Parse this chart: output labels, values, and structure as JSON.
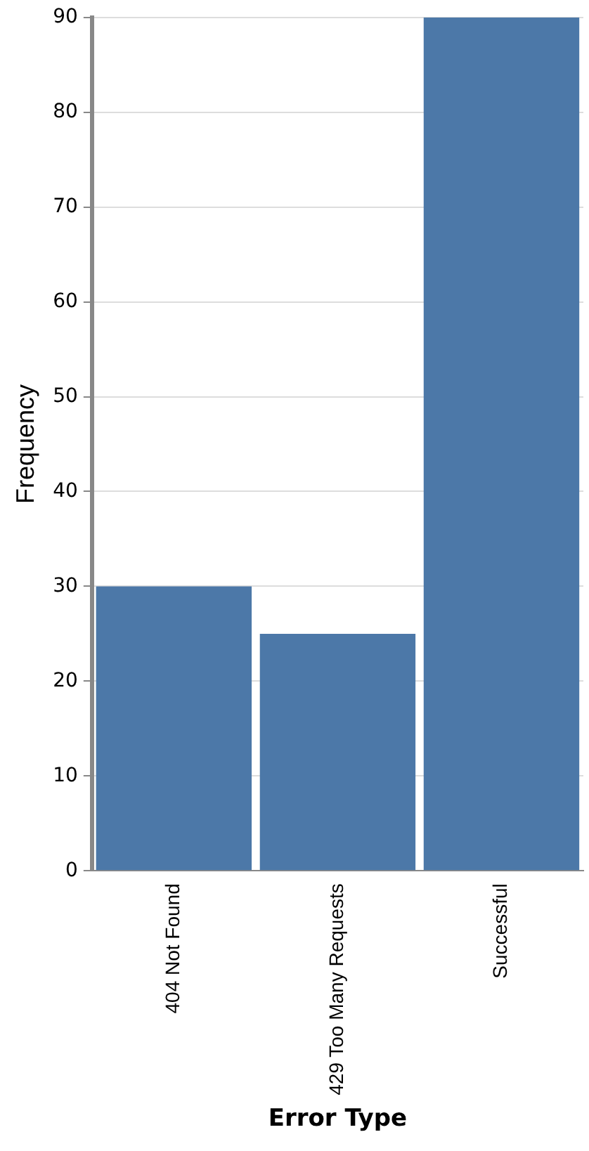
{
  "chart_data": {
    "type": "bar",
    "xlabel": "Error Type",
    "ylabel": "Frequency",
    "categories": [
      "404 Not Found",
      "429 Too Many Requests",
      "Successful"
    ],
    "values": [
      30,
      25,
      90
    ],
    "color": "#4c78a8",
    "ylim": [
      0,
      90
    ],
    "yticks": [
      0,
      10,
      20,
      30,
      40,
      50,
      60,
      70,
      80,
      90
    ],
    "grid": "y",
    "legend": false
  }
}
